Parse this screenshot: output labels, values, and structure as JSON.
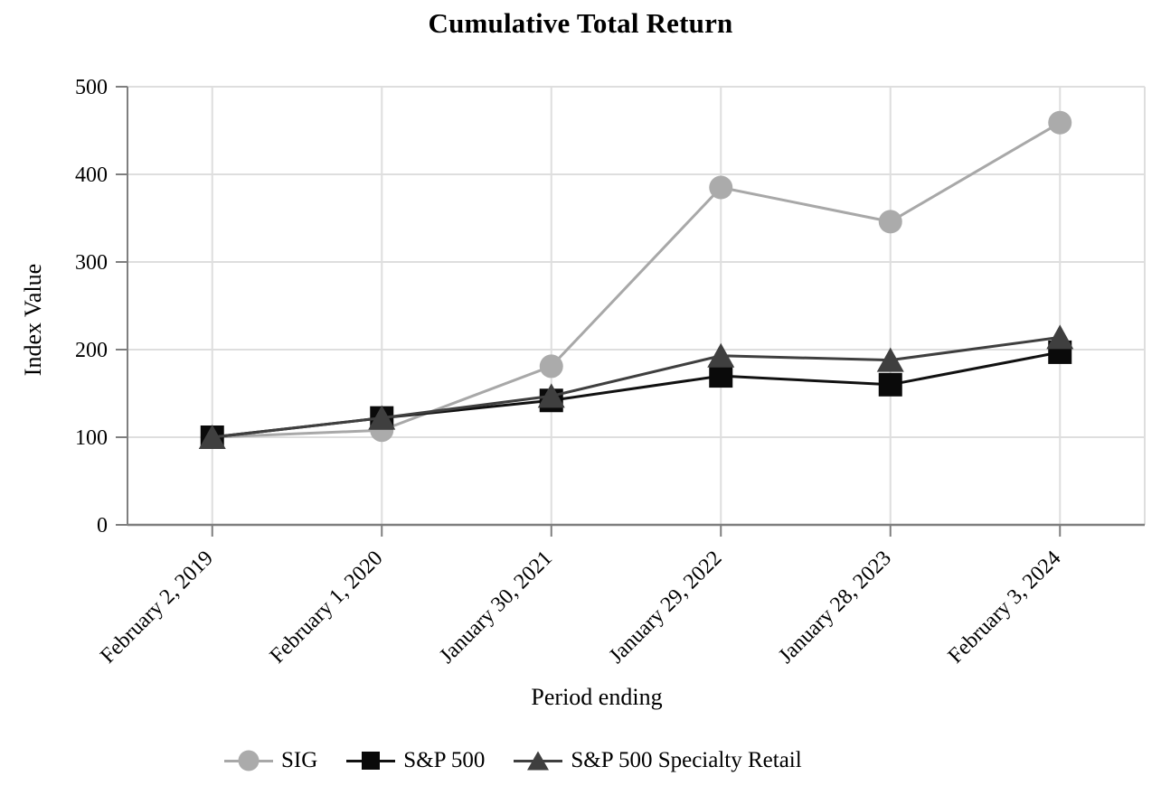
{
  "chart_data": {
    "type": "line",
    "title": "Cumulative Total Return",
    "xlabel": "Period ending",
    "ylabel": "Index Value",
    "categories": [
      "February 2, 2019",
      "February 1, 2020",
      "January 30, 2021",
      "January 29, 2022",
      "January 28, 2023",
      "February 3, 2024"
    ],
    "series": [
      {
        "name": "SIG",
        "marker": "circle",
        "line_color": "#A8A8A8",
        "marker_color": "#ABABAB",
        "values": [
          100,
          108,
          181,
          385,
          346,
          459
        ]
      },
      {
        "name": "S&P 500",
        "marker": "square",
        "line_color": "#111111",
        "marker_color": "#0A0A0A",
        "values": [
          100,
          122,
          142,
          170,
          160,
          197
        ]
      },
      {
        "name": "S&P 500 Specialty Retail",
        "marker": "triangle",
        "line_color": "#3F3F3F",
        "marker_color": "#3F3F3F",
        "values": [
          100,
          122,
          147,
          193,
          188,
          214
        ]
      }
    ],
    "ylim": [
      0,
      500
    ],
    "yticks": [
      0,
      100,
      200,
      300,
      400,
      500
    ],
    "grid": true,
    "legend_position": "bottom",
    "colors": {
      "grid": "#DEDEDE",
      "axis": "#7F7F7F",
      "text": "#000000"
    }
  }
}
